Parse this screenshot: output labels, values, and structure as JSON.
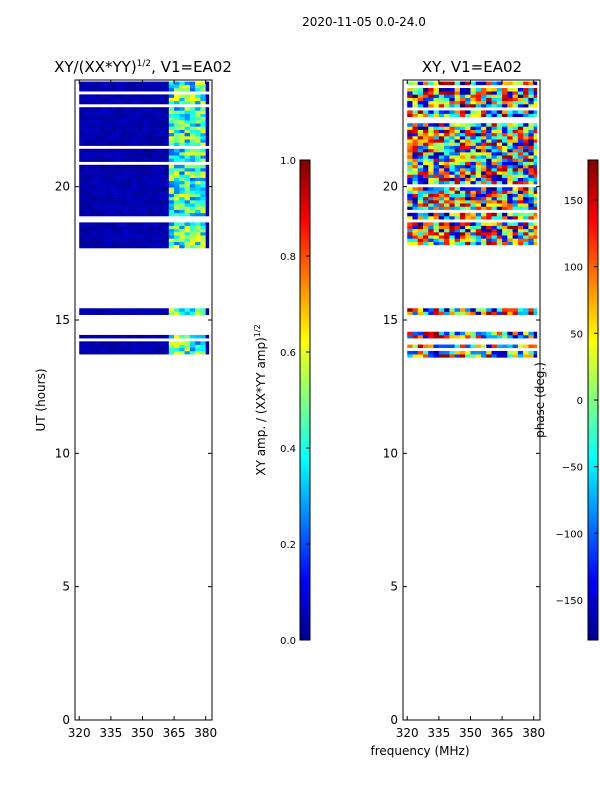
{
  "figure": {
    "suptitle": "2020-11-05 0.0-24.0"
  },
  "colors": {
    "background": "#ffffff",
    "frame": "#000000",
    "empty": "#ffffff"
  },
  "chart_data": [
    {
      "type": "heatmap",
      "id": "amp",
      "title": "XY/(XX*YY)^{1/2}, V1=EA02",
      "title_main": "XY/(XX*YY)",
      "title_sup": "1/2",
      "title_rest": ", V1=EA02",
      "xlabel": "",
      "ylabel": "UT (hours)",
      "xlim": [
        318,
        383
      ],
      "ylim": [
        0,
        24
      ],
      "xticks": [
        320,
        335,
        350,
        365,
        380
      ],
      "yticks": [
        0,
        5,
        10,
        15,
        20
      ],
      "colormap": "jet",
      "colorbar": {
        "label": "XY amp. / (XX*YY amp)^{1/2}",
        "label_main": "XY amp. / (XX*YY amp)",
        "label_sup": "1/2",
        "range": [
          0.0,
          1.0
        ],
        "ticks": [
          0.0,
          0.2,
          0.4,
          0.6,
          0.8,
          1.0
        ],
        "tick_labels": [
          "0.0",
          "0.2",
          "0.4",
          "0.6",
          "0.8",
          "1.0"
        ]
      },
      "data_blocks_ut": [
        [
          13.6,
          14.5
        ],
        [
          15.2,
          15.4
        ],
        [
          17.7,
          23.9
        ]
      ],
      "bright_channels_mhz": [
        [
          363,
          366
        ],
        [
          367,
          370
        ],
        [
          372,
          375
        ],
        [
          377,
          380
        ]
      ],
      "typical_values": {
        "low_band": 0.05,
        "high_band": 0.45
      }
    },
    {
      "type": "heatmap",
      "id": "phase",
      "title": "XY, V1=EA02",
      "xlabel": "frequency (MHz)",
      "ylabel": "",
      "xlim": [
        318,
        383
      ],
      "ylim": [
        0,
        24
      ],
      "xticks": [
        320,
        335,
        350,
        365,
        380
      ],
      "yticks": [
        0,
        5,
        10,
        15,
        20
      ],
      "colormap": "jet",
      "colorbar": {
        "label": "phase (deg.)",
        "range": [
          -180,
          180
        ],
        "ticks": [
          -150,
          -100,
          -50,
          0,
          50,
          100,
          150
        ],
        "tick_labels": [
          "−150",
          "−100",
          "−50",
          "0",
          "50",
          "100",
          "150"
        ]
      },
      "data_blocks_ut": [
        [
          13.6,
          14.5
        ],
        [
          15.2,
          15.4
        ],
        [
          17.7,
          23.9
        ]
      ],
      "typical_values": {
        "phase_spread_deg": [
          -180,
          180
        ]
      }
    }
  ]
}
